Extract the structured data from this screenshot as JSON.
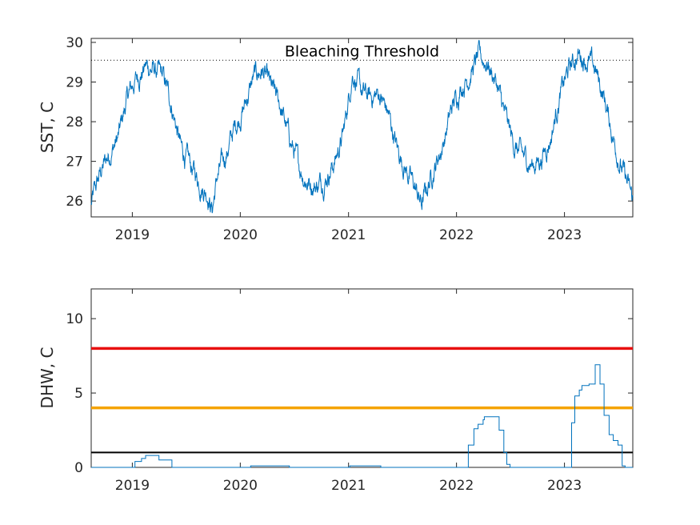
{
  "chart_data": [
    {
      "type": "line",
      "ylabel": "SST, C",
      "xlim": [
        "2018-08-15",
        "2023-08-20"
      ],
      "ylim": [
        25.6,
        30.1
      ],
      "x_ticks": [
        "2019",
        "2020",
        "2021",
        "2022",
        "2023"
      ],
      "y_ticks": [
        26,
        27,
        28,
        29,
        30
      ],
      "grid": false,
      "annotations": [
        {
          "text": "Bleaching Threshold",
          "y": 29.55
        }
      ],
      "threshold_line": {
        "y": 29.55,
        "style": "dotted",
        "color": "#000000"
      },
      "series": [
        {
          "color": "#0072bd",
          "points": [
            [
              "2018-08-15",
              25.9
            ],
            [
              "2018-09-15",
              26.7
            ],
            [
              "2018-10-15",
              27.2
            ],
            [
              "2018-11-15",
              27.6
            ],
            [
              "2018-12-15",
              28.6
            ],
            [
              "2019-01-15",
              29.1
            ],
            [
              "2019-02-15",
              29.4
            ],
            [
              "2019-03-15",
              29.3
            ],
            [
              "2019-04-15",
              29.1
            ],
            [
              "2019-05-15",
              28.4
            ],
            [
              "2019-06-15",
              27.3
            ],
            [
              "2019-07-15",
              26.9
            ],
            [
              "2019-08-15",
              26.5
            ],
            [
              "2019-09-15",
              26.2
            ],
            [
              "2019-09-28",
              25.8
            ],
            [
              "2019-10-15",
              26.6
            ],
            [
              "2019-11-15",
              27.2
            ],
            [
              "2019-12-15",
              27.9
            ],
            [
              "2020-01-15",
              28.4
            ],
            [
              "2020-02-15",
              29.1
            ],
            [
              "2020-03-15",
              29.3
            ],
            [
              "2020-04-15",
              28.8
            ],
            [
              "2020-05-15",
              28.4
            ],
            [
              "2020-06-15",
              27.6
            ],
            [
              "2020-07-15",
              26.9
            ],
            [
              "2020-08-15",
              26.5
            ],
            [
              "2020-09-15",
              26.4
            ],
            [
              "2020-10-15",
              26.6
            ],
            [
              "2020-11-15",
              27.0
            ],
            [
              "2020-12-15",
              27.7
            ],
            [
              "2021-01-15",
              29.3
            ],
            [
              "2021-02-15",
              28.7
            ],
            [
              "2021-03-15",
              28.6
            ],
            [
              "2021-04-15",
              28.7
            ],
            [
              "2021-05-15",
              28.2
            ],
            [
              "2021-06-15",
              27.3
            ],
            [
              "2021-07-15",
              26.8
            ],
            [
              "2021-08-15",
              26.3
            ],
            [
              "2021-09-05",
              25.9
            ],
            [
              "2021-10-15",
              26.8
            ],
            [
              "2021-11-15",
              27.4
            ],
            [
              "2021-12-15",
              28.3
            ],
            [
              "2022-01-15",
              28.9
            ],
            [
              "2022-02-15",
              29.2
            ],
            [
              "2022-03-15",
              29.6
            ],
            [
              "2022-04-15",
              29.5
            ],
            [
              "2022-05-15",
              29.0
            ],
            [
              "2022-06-15",
              28.1
            ],
            [
              "2022-07-15",
              27.4
            ],
            [
              "2022-08-15",
              27.1
            ],
            [
              "2022-09-15",
              26.9
            ],
            [
              "2022-10-15",
              27.1
            ],
            [
              "2022-11-15",
              27.6
            ],
            [
              "2022-12-15",
              28.6
            ],
            [
              "2023-01-15",
              29.3
            ],
            [
              "2023-02-15",
              29.7
            ],
            [
              "2023-03-15",
              29.6
            ],
            [
              "2023-04-15",
              29.3
            ],
            [
              "2023-05-15",
              28.6
            ],
            [
              "2023-06-15",
              27.6
            ],
            [
              "2023-07-15",
              26.8
            ],
            [
              "2023-08-20",
              26.0
            ]
          ]
        }
      ]
    },
    {
      "type": "line",
      "ylabel": "DHW, C",
      "xlim": [
        "2018-08-15",
        "2023-08-20"
      ],
      "ylim": [
        0,
        12
      ],
      "x_ticks": [
        "2019",
        "2020",
        "2021",
        "2022",
        "2023"
      ],
      "y_ticks": [
        0,
        5,
        10
      ],
      "grid": false,
      "reference_lines": [
        {
          "y": 8,
          "color": "#e81010"
        },
        {
          "y": 4,
          "color": "#f5a300"
        },
        {
          "y": 1,
          "color": "#000000"
        }
      ],
      "series": [
        {
          "color": "#0072bd",
          "points": [
            [
              "2018-08-15",
              0
            ],
            [
              "2019-01-01",
              0
            ],
            [
              "2019-01-10",
              0.4
            ],
            [
              "2019-02-01",
              0.6
            ],
            [
              "2019-02-15",
              0.8
            ],
            [
              "2019-03-20",
              0.8
            ],
            [
              "2019-04-01",
              0.5
            ],
            [
              "2019-05-05",
              0.5
            ],
            [
              "2019-05-15",
              0
            ],
            [
              "2020-02-01",
              0
            ],
            [
              "2020-02-05",
              0.1
            ],
            [
              "2020-06-10",
              0.1
            ],
            [
              "2020-06-15",
              0
            ],
            [
              "2021-01-01",
              0
            ],
            [
              "2021-01-05",
              0.1
            ],
            [
              "2021-04-15",
              0.1
            ],
            [
              "2021-04-20",
              0
            ],
            [
              "2022-01-20",
              0
            ],
            [
              "2022-02-10",
              1.5
            ],
            [
              "2022-03-01",
              2.6
            ],
            [
              "2022-03-15",
              2.9
            ],
            [
              "2022-04-01",
              3.2
            ],
            [
              "2022-04-05",
              3.4
            ],
            [
              "2022-05-10",
              3.4
            ],
            [
              "2022-05-25",
              2.5
            ],
            [
              "2022-06-10",
              1.0
            ],
            [
              "2022-06-20",
              0.2
            ],
            [
              "2022-07-01",
              0
            ],
            [
              "2023-01-05",
              0
            ],
            [
              "2023-01-25",
              3.0
            ],
            [
              "2023-02-05",
              4.8
            ],
            [
              "2023-02-20",
              5.2
            ],
            [
              "2023-03-01",
              5.5
            ],
            [
              "2023-03-25",
              5.6
            ],
            [
              "2023-04-15",
              6.9
            ],
            [
              "2023-05-01",
              5.6
            ],
            [
              "2023-05-15",
              3.5
            ],
            [
              "2023-06-01",
              2.2
            ],
            [
              "2023-06-15",
              1.8
            ],
            [
              "2023-07-01",
              1.5
            ],
            [
              "2023-07-15",
              0.1
            ],
            [
              "2023-07-25",
              0
            ],
            [
              "2023-08-20",
              0
            ]
          ]
        }
      ]
    }
  ]
}
